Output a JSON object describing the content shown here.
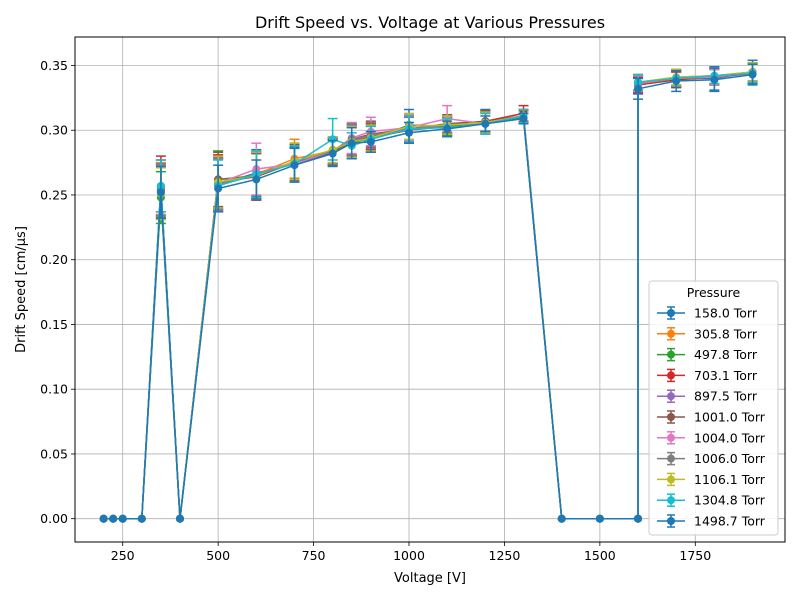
{
  "chart_data": {
    "type": "line",
    "title": "Drift Speed vs. Voltage at Various Pressures",
    "xlabel": "Voltage [V]",
    "ylabel": "Drift Speed [cm/µs]",
    "xlim": [
      125,
      1985
    ],
    "ylim": [
      -0.018,
      0.372
    ],
    "xticks": [
      250,
      500,
      750,
      1000,
      1250,
      1500,
      1750
    ],
    "yticks": [
      0.0,
      0.05,
      0.1,
      0.15,
      0.2,
      0.25,
      0.3,
      0.35
    ],
    "ytick_labels": [
      "0.00",
      "0.05",
      "0.10",
      "0.15",
      "0.20",
      "0.25",
      "0.30",
      "0.35"
    ],
    "grid": true,
    "legend_title": "Pressure",
    "legend_position": "lower-right",
    "series": [
      {
        "name": "158.0 Torr",
        "color": "#1f77b4",
        "points": [
          [
            350,
            0.257,
            0.02
          ],
          [
            500,
            0.258,
            0.02
          ],
          [
            600,
            0.267,
            0.018
          ],
          [
            700,
            0.274,
            0.013
          ],
          [
            800,
            0.283,
            0.01
          ],
          [
            850,
            0.292,
            0.012
          ],
          [
            900,
            0.293,
            0.01
          ],
          [
            1000,
            0.304,
            0.012
          ],
          [
            1100,
            0.303,
            0.007
          ],
          [
            1200,
            0.307,
            0.009
          ],
          [
            1300,
            0.31,
            0.005
          ],
          [
            1600,
            0.335,
            0.007
          ],
          [
            1700,
            0.34,
            0.007
          ],
          [
            1800,
            0.34,
            0.009
          ],
          [
            1900,
            0.345,
            0.009
          ]
        ]
      },
      {
        "name": "305.8 Torr",
        "color": "#ff7f0e",
        "points": [
          [
            350,
            0.255,
            0.02
          ],
          [
            500,
            0.258,
            0.02
          ],
          [
            600,
            0.266,
            0.018
          ],
          [
            700,
            0.278,
            0.015
          ],
          [
            800,
            0.284,
            0.01
          ],
          [
            850,
            0.292,
            0.012
          ],
          [
            900,
            0.295,
            0.01
          ],
          [
            1000,
            0.301,
            0.01
          ],
          [
            1100,
            0.304,
            0.007
          ],
          [
            1200,
            0.306,
            0.008
          ],
          [
            1300,
            0.311,
            0.005
          ],
          [
            1600,
            0.337,
            0.006
          ],
          [
            1700,
            0.341,
            0.006
          ],
          [
            1800,
            0.342,
            0.006
          ],
          [
            1900,
            0.344,
            0.007
          ]
        ]
      },
      {
        "name": "497.8 Torr",
        "color": "#2ca02c",
        "points": [
          [
            350,
            0.248,
            0.02
          ],
          [
            500,
            0.262,
            0.022
          ],
          [
            600,
            0.265,
            0.018
          ],
          [
            700,
            0.275,
            0.014
          ],
          [
            800,
            0.284,
            0.01
          ],
          [
            850,
            0.29,
            0.012
          ],
          [
            900,
            0.294,
            0.01
          ],
          [
            1000,
            0.3,
            0.01
          ],
          [
            1100,
            0.303,
            0.007
          ],
          [
            1200,
            0.305,
            0.008
          ],
          [
            1300,
            0.31,
            0.005
          ],
          [
            1600,
            0.335,
            0.006
          ],
          [
            1700,
            0.339,
            0.006
          ],
          [
            1800,
            0.341,
            0.006
          ],
          [
            1900,
            0.344,
            0.007
          ]
        ]
      },
      {
        "name": "703.1 Torr",
        "color": "#d62728",
        "points": [
          [
            350,
            0.256,
            0.024
          ],
          [
            500,
            0.26,
            0.021
          ],
          [
            600,
            0.264,
            0.018
          ],
          [
            700,
            0.276,
            0.014
          ],
          [
            800,
            0.284,
            0.01
          ],
          [
            850,
            0.291,
            0.012
          ],
          [
            900,
            0.295,
            0.01
          ],
          [
            1000,
            0.3,
            0.01
          ],
          [
            1100,
            0.304,
            0.007
          ],
          [
            1200,
            0.307,
            0.008
          ],
          [
            1300,
            0.313,
            0.006
          ],
          [
            1600,
            0.335,
            0.006
          ],
          [
            1700,
            0.339,
            0.006
          ],
          [
            1800,
            0.341,
            0.006
          ],
          [
            1900,
            0.344,
            0.007
          ]
        ]
      },
      {
        "name": "897.5 Torr",
        "color": "#9467bd",
        "points": [
          [
            350,
            0.253,
            0.02
          ],
          [
            500,
            0.258,
            0.02
          ],
          [
            600,
            0.265,
            0.018
          ],
          [
            700,
            0.275,
            0.014
          ],
          [
            800,
            0.284,
            0.01
          ],
          [
            850,
            0.292,
            0.012
          ],
          [
            900,
            0.296,
            0.01
          ],
          [
            1000,
            0.3,
            0.01
          ],
          [
            1100,
            0.304,
            0.007
          ],
          [
            1200,
            0.306,
            0.008
          ],
          [
            1300,
            0.311,
            0.005
          ],
          [
            1600,
            0.336,
            0.006
          ],
          [
            1700,
            0.34,
            0.006
          ],
          [
            1800,
            0.341,
            0.006
          ],
          [
            1900,
            0.345,
            0.007
          ]
        ]
      },
      {
        "name": "1001.0 Torr",
        "color": "#8c564b",
        "points": [
          [
            350,
            0.254,
            0.02
          ],
          [
            500,
            0.262,
            0.021
          ],
          [
            600,
            0.264,
            0.018
          ],
          [
            700,
            0.275,
            0.014
          ],
          [
            800,
            0.283,
            0.01
          ],
          [
            850,
            0.293,
            0.012
          ],
          [
            900,
            0.297,
            0.01
          ],
          [
            1000,
            0.301,
            0.01
          ],
          [
            1100,
            0.305,
            0.007
          ],
          [
            1200,
            0.307,
            0.008
          ],
          [
            1300,
            0.311,
            0.005
          ],
          [
            1600,
            0.336,
            0.006
          ],
          [
            1700,
            0.34,
            0.006
          ],
          [
            1800,
            0.341,
            0.006
          ],
          [
            1900,
            0.345,
            0.007
          ]
        ]
      },
      {
        "name": "1004.0 Torr",
        "color": "#e377c2",
        "points": [
          [
            350,
            0.254,
            0.02
          ],
          [
            500,
            0.259,
            0.02
          ],
          [
            600,
            0.27,
            0.02
          ],
          [
            700,
            0.274,
            0.014
          ],
          [
            800,
            0.284,
            0.01
          ],
          [
            850,
            0.294,
            0.012
          ],
          [
            900,
            0.299,
            0.011
          ],
          [
            1000,
            0.302,
            0.01
          ],
          [
            1100,
            0.309,
            0.01
          ],
          [
            1200,
            0.305,
            0.008
          ],
          [
            1300,
            0.311,
            0.005
          ],
          [
            1600,
            0.336,
            0.006
          ],
          [
            1700,
            0.34,
            0.006
          ],
          [
            1800,
            0.341,
            0.006
          ],
          [
            1900,
            0.345,
            0.007
          ]
        ]
      },
      {
        "name": "1006.0 Torr",
        "color": "#7f7f7f",
        "points": [
          [
            350,
            0.254,
            0.02
          ],
          [
            500,
            0.259,
            0.02
          ],
          [
            600,
            0.265,
            0.018
          ],
          [
            700,
            0.276,
            0.014
          ],
          [
            800,
            0.284,
            0.01
          ],
          [
            850,
            0.293,
            0.012
          ],
          [
            900,
            0.296,
            0.01
          ],
          [
            1000,
            0.301,
            0.01
          ],
          [
            1100,
            0.304,
            0.007
          ],
          [
            1200,
            0.306,
            0.008
          ],
          [
            1300,
            0.311,
            0.005
          ],
          [
            1600,
            0.337,
            0.006
          ],
          [
            1700,
            0.34,
            0.006
          ],
          [
            1800,
            0.342,
            0.006
          ],
          [
            1900,
            0.345,
            0.007
          ]
        ]
      },
      {
        "name": "1106.1 Torr",
        "color": "#bcbd22",
        "points": [
          [
            350,
            0.251,
            0.02
          ],
          [
            500,
            0.26,
            0.02
          ],
          [
            600,
            0.265,
            0.018
          ],
          [
            700,
            0.276,
            0.014
          ],
          [
            800,
            0.285,
            0.01
          ],
          [
            850,
            0.291,
            0.012
          ],
          [
            900,
            0.294,
            0.01
          ],
          [
            1000,
            0.303,
            0.01
          ],
          [
            1100,
            0.304,
            0.007
          ],
          [
            1200,
            0.306,
            0.008
          ],
          [
            1300,
            0.311,
            0.005
          ],
          [
            1600,
            0.337,
            0.006
          ],
          [
            1700,
            0.341,
            0.006
          ],
          [
            1800,
            0.342,
            0.006
          ],
          [
            1900,
            0.345,
            0.007
          ]
        ]
      },
      {
        "name": "1304.8 Torr",
        "color": "#17becf",
        "points": [
          [
            350,
            0.257,
            0.02
          ],
          [
            500,
            0.257,
            0.02
          ],
          [
            600,
            0.266,
            0.018
          ],
          [
            700,
            0.274,
            0.014
          ],
          [
            800,
            0.293,
            0.016
          ],
          [
            850,
            0.288,
            0.01
          ],
          [
            900,
            0.293,
            0.01
          ],
          [
            1000,
            0.301,
            0.01
          ],
          [
            1100,
            0.302,
            0.007
          ],
          [
            1200,
            0.305,
            0.008
          ],
          [
            1300,
            0.311,
            0.005
          ],
          [
            1600,
            0.337,
            0.006
          ],
          [
            1700,
            0.34,
            0.006
          ],
          [
            1800,
            0.342,
            0.006
          ],
          [
            1900,
            0.344,
            0.007
          ]
        ]
      },
      {
        "name": "1498.7 Torr",
        "color": "#1f77b4",
        "points": [
          [
            350,
            0.252,
            0.02
          ],
          [
            500,
            0.255,
            0.018
          ],
          [
            600,
            0.262,
            0.015
          ],
          [
            700,
            0.273,
            0.013
          ],
          [
            800,
            0.282,
            0.01
          ],
          [
            850,
            0.29,
            0.012
          ],
          [
            900,
            0.291,
            0.008
          ],
          [
            1000,
            0.298,
            0.008
          ],
          [
            1100,
            0.301,
            0.006
          ],
          [
            1200,
            0.305,
            0.006
          ],
          [
            1300,
            0.309,
            0.004
          ],
          [
            1600,
            0.332,
            0.008
          ],
          [
            1700,
            0.338,
            0.008
          ],
          [
            1800,
            0.339,
            0.009
          ],
          [
            1900,
            0.343,
            0.008
          ]
        ]
      }
    ],
    "zero_voltages": [
      200,
      225,
      250,
      300,
      400,
      1400,
      1500,
      1600
    ]
  }
}
